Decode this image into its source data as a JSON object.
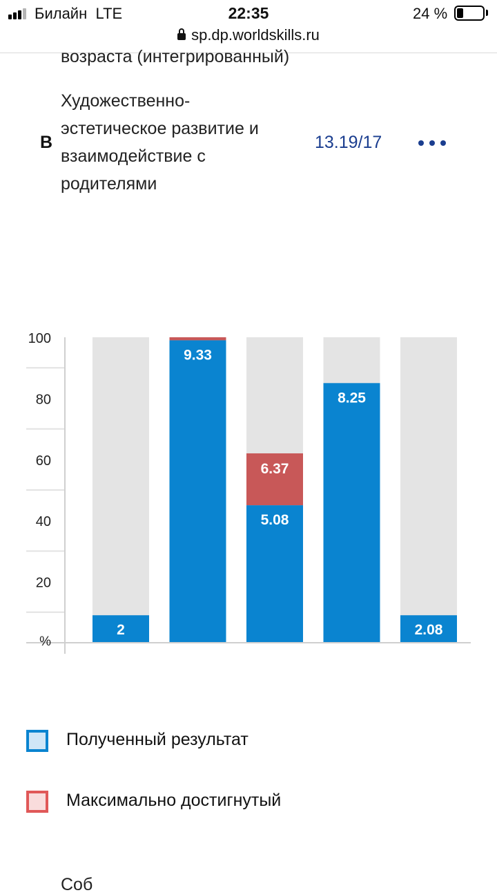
{
  "status_bar": {
    "carrier": "Билайн  LTE",
    "time": "22:35",
    "battery_percent": "24 %",
    "battery_level": 0.24
  },
  "browser": {
    "url": "sp.dp.worldskills.ru"
  },
  "rows": {
    "previous_text": "возраста (интегрированный)",
    "current": {
      "letter": "В",
      "title": "Художественно-эстетическое развитие и взаимодействие с родителями",
      "code": "13.19/17"
    }
  },
  "colors": {
    "obtained": "#0a84d0",
    "max": "#c85858",
    "background_bar": "#e4e4e4",
    "code_text": "#1a3d8f"
  },
  "chart_data": {
    "type": "bar",
    "stacked": true,
    "ylabel": "%",
    "ylim": [
      0,
      100
    ],
    "yticks": [
      20,
      40,
      60,
      80,
      100
    ],
    "grid": true,
    "bars": [
      {
        "obtained": 9,
        "obtained_label": "2",
        "max_top": 9,
        "max_label": ""
      },
      {
        "obtained": 99,
        "obtained_label": "9.33",
        "max_top": 100,
        "max_label": ""
      },
      {
        "obtained": 45,
        "obtained_label": "5.08",
        "max_top": 62,
        "max_label": "6.37"
      },
      {
        "obtained": 85,
        "obtained_label": "8.25",
        "max_top": 85,
        "max_label": ""
      },
      {
        "obtained": 9,
        "obtained_label": "2.08",
        "max_top": 9,
        "max_label": ""
      }
    ],
    "legend": [
      {
        "label": "Полученный результат",
        "color": "#0a84d0",
        "fill": "#cfe6f7"
      },
      {
        "label": "Максимально достигнутый",
        "color": "#e05858",
        "fill": "#f9dcdc"
      }
    ]
  },
  "footer": {
    "cut_text": "Соб"
  }
}
